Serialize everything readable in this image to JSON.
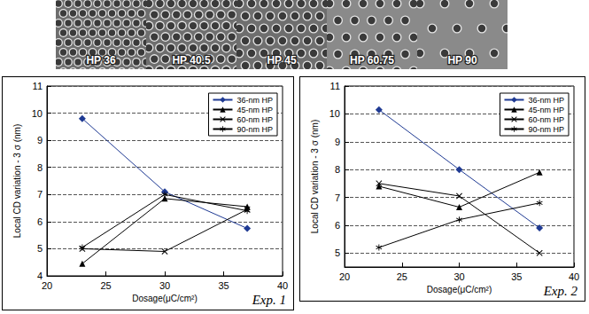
{
  "images": [
    {
      "label": "HP 36"
    },
    {
      "label": "HP 40.5"
    },
    {
      "label": "HP 45"
    },
    {
      "label": "HP 60.75"
    },
    {
      "label": "HP 90"
    }
  ],
  "chart_data": [
    {
      "type": "line",
      "annotation": "Exp. 1",
      "x_label": "Dosage(μC/cm²)",
      "y_label": "Local CD variation - 3 σ (nm)",
      "x": [
        23,
        30,
        37
      ],
      "xlim": [
        20,
        40
      ],
      "xticks": [
        20,
        25,
        30,
        35,
        40
      ],
      "ylim": [
        4,
        11
      ],
      "yticks": [
        4,
        5,
        6,
        7,
        8,
        9,
        10,
        11
      ],
      "grid": true,
      "legend": "upper right",
      "series": [
        {
          "name": "36-nm HP",
          "color": "#1f3a93",
          "marker": "diamond",
          "values": [
            9.8,
            7.1,
            5.75
          ]
        },
        {
          "name": "45-nm HP",
          "color": "#000000",
          "marker": "triangle",
          "values": [
            4.45,
            6.85,
            6.55
          ]
        },
        {
          "name": "60-nm HP",
          "color": "#000000",
          "marker": "x",
          "values": [
            5.0,
            4.9,
            6.45
          ]
        },
        {
          "name": "90-nm HP",
          "color": "#000000",
          "marker": "asterisk",
          "values": [
            5.05,
            7.0,
            6.4
          ]
        }
      ]
    },
    {
      "type": "line",
      "annotation": "Exp. 2",
      "x_label": "Dosage(μC/cm²)",
      "y_label": "Local CD variation - 3 σ (nm)",
      "x": [
        23,
        30,
        37
      ],
      "xlim": [
        20,
        40
      ],
      "xticks": [
        20,
        25,
        30,
        35,
        40
      ],
      "ylim": [
        4.5,
        11
      ],
      "yticks": [
        5,
        6,
        7,
        8,
        9,
        10,
        11
      ],
      "grid": true,
      "legend": "upper right",
      "series": [
        {
          "name": "36-nm HP",
          "color": "#1f3a93",
          "marker": "diamond",
          "values": [
            10.15,
            8.0,
            5.9
          ]
        },
        {
          "name": "45-nm HP",
          "color": "#000000",
          "marker": "triangle",
          "values": [
            7.4,
            6.65,
            7.9
          ]
        },
        {
          "name": "60-nm HP",
          "color": "#000000",
          "marker": "x",
          "values": [
            7.5,
            7.05,
            5.0
          ]
        },
        {
          "name": "90-nm HP",
          "color": "#000000",
          "marker": "asterisk",
          "values": [
            5.2,
            6.2,
            6.8
          ]
        }
      ]
    }
  ]
}
